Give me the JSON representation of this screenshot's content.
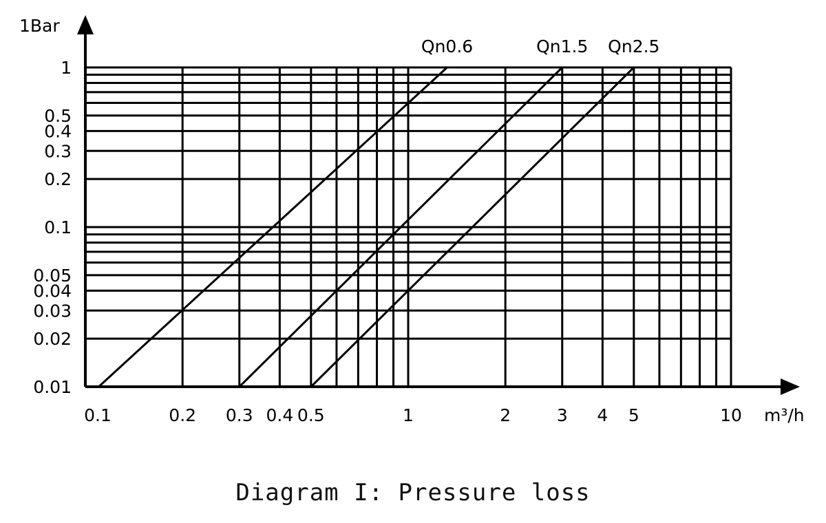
{
  "caption": "Diagram I: Pressure loss",
  "chart_data": {
    "type": "line",
    "title": "",
    "xlabel": "m³/h",
    "ylabel": "1Bar",
    "xscale": "log",
    "yscale": "log",
    "xlim": [
      0.1,
      10
    ],
    "ylim": [
      0.01,
      1
    ],
    "grid": true,
    "x_tick_labels": [
      {
        "value": 0.1,
        "label": "0.1"
      },
      {
        "value": 0.2,
        "label": "0.2"
      },
      {
        "value": 0.3,
        "label": "0.3"
      },
      {
        "value": 0.4,
        "label": "0.4"
      },
      {
        "value": 0.5,
        "label": "0.5"
      },
      {
        "value": 1,
        "label": "1"
      },
      {
        "value": 2,
        "label": "2"
      },
      {
        "value": 3,
        "label": "3"
      },
      {
        "value": 4,
        "label": "4"
      },
      {
        "value": 5,
        "label": "5"
      },
      {
        "value": 10,
        "label": "10"
      }
    ],
    "y_tick_labels": [
      {
        "value": 0.01,
        "label": "0.01"
      },
      {
        "value": 0.02,
        "label": "0.02"
      },
      {
        "value": 0.03,
        "label": "0.03"
      },
      {
        "value": 0.04,
        "label": "0.04"
      },
      {
        "value": 0.05,
        "label": "0.05"
      },
      {
        "value": 0.1,
        "label": "0.1"
      },
      {
        "value": 0.2,
        "label": "0.2"
      },
      {
        "value": 0.3,
        "label": "0.3"
      },
      {
        "value": 0.4,
        "label": "0.4"
      },
      {
        "value": 0.5,
        "label": "0.5"
      },
      {
        "value": 1,
        "label": "1"
      }
    ],
    "x_gridlines": [
      0.1,
      0.2,
      0.3,
      0.4,
      0.5,
      0.6,
      0.7,
      0.8,
      0.9,
      1,
      2,
      3,
      4,
      5,
      6,
      7,
      8,
      9,
      10
    ],
    "y_gridlines": [
      0.01,
      0.02,
      0.03,
      0.04,
      0.05,
      0.06,
      0.07,
      0.08,
      0.09,
      0.1,
      0.2,
      0.3,
      0.4,
      0.5,
      0.6,
      0.7,
      0.8,
      0.9,
      1
    ],
    "series": [
      {
        "name": "Qn0.6",
        "points": [
          [
            0.11,
            0.01
          ],
          [
            1.32,
            1
          ]
        ]
      },
      {
        "name": "Qn1.5",
        "points": [
          [
            0.3,
            0.01
          ],
          [
            3.0,
            1
          ]
        ]
      },
      {
        "name": "Qn2.5",
        "points": [
          [
            0.5,
            0.01
          ],
          [
            5.0,
            1
          ]
        ]
      }
    ]
  }
}
